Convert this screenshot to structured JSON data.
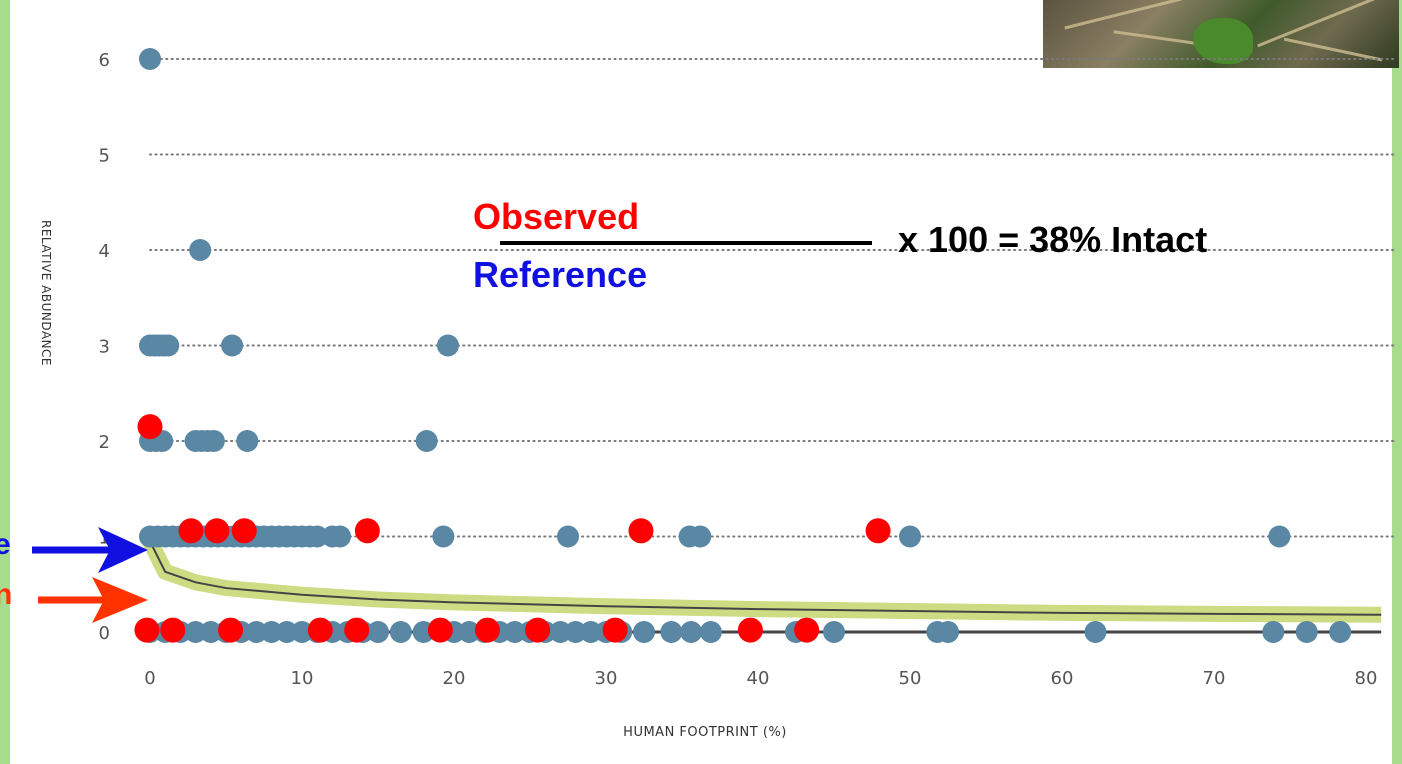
{
  "chart_data": {
    "type": "scatter",
    "xlabel": "HUMAN FOOTPRINT (%)",
    "ylabel": "RELATIVE ABUNDANCE",
    "xlim": [
      -1,
      82
    ],
    "ylim": [
      0,
      6
    ],
    "x_ticks": [
      "0",
      "10",
      "20",
      "30",
      "40",
      "50",
      "60",
      "70",
      "80"
    ],
    "y_ticks": [
      "0",
      "1",
      "2",
      "3",
      "4",
      "5",
      "6"
    ],
    "grid": "dotted horizontal",
    "series": [
      {
        "color": "#5a87a4",
        "points": [
          [
            0,
            6
          ],
          [
            3.3,
            4
          ],
          [
            0,
            3
          ],
          [
            0.3,
            3
          ],
          [
            0.6,
            3
          ],
          [
            0.9,
            3
          ],
          [
            1.2,
            3
          ],
          [
            5.4,
            3
          ],
          [
            19.6,
            3
          ],
          [
            0,
            2
          ],
          [
            0.4,
            2
          ],
          [
            0.8,
            2
          ],
          [
            3,
            2
          ],
          [
            3.4,
            2
          ],
          [
            3.8,
            2
          ],
          [
            4.2,
            2
          ],
          [
            6.4,
            2
          ],
          [
            18.2,
            2
          ],
          [
            0,
            1
          ],
          [
            0.5,
            1
          ],
          [
            1,
            1
          ],
          [
            1.5,
            1
          ],
          [
            2,
            1
          ],
          [
            2.5,
            1
          ],
          [
            3,
            1
          ],
          [
            3.5,
            1
          ],
          [
            4,
            1
          ],
          [
            4.5,
            1
          ],
          [
            5,
            1
          ],
          [
            5.5,
            1
          ],
          [
            6,
            1
          ],
          [
            6.5,
            1
          ],
          [
            7,
            1
          ],
          [
            7.5,
            1
          ],
          [
            8,
            1
          ],
          [
            8.5,
            1
          ],
          [
            9,
            1
          ],
          [
            9.5,
            1
          ],
          [
            10,
            1
          ],
          [
            10.5,
            1
          ],
          [
            11,
            1
          ],
          [
            12,
            1
          ],
          [
            12.5,
            1
          ],
          [
            19.3,
            1
          ],
          [
            27.5,
            1
          ],
          [
            35.5,
            1
          ],
          [
            36.2,
            1
          ],
          [
            50,
            1
          ],
          [
            74.3,
            1
          ],
          [
            0,
            0
          ],
          [
            1,
            0
          ],
          [
            2,
            0
          ],
          [
            3,
            0
          ],
          [
            4,
            0
          ],
          [
            5,
            0
          ],
          [
            6,
            0
          ],
          [
            7,
            0
          ],
          [
            8,
            0
          ],
          [
            9,
            0
          ],
          [
            10,
            0
          ],
          [
            11,
            0
          ],
          [
            12,
            0
          ],
          [
            13,
            0
          ],
          [
            14,
            0
          ],
          [
            15,
            0
          ],
          [
            16.5,
            0
          ],
          [
            18,
            0
          ],
          [
            20,
            0
          ],
          [
            21,
            0
          ],
          [
            22,
            0
          ],
          [
            23,
            0
          ],
          [
            24,
            0
          ],
          [
            25,
            0
          ],
          [
            26,
            0
          ],
          [
            27,
            0
          ],
          [
            28,
            0
          ],
          [
            29,
            0
          ],
          [
            30,
            0
          ],
          [
            31,
            0
          ],
          [
            32.5,
            0
          ],
          [
            34.3,
            0
          ],
          [
            35.6,
            0
          ],
          [
            36.9,
            0
          ],
          [
            42.5,
            0
          ],
          [
            45,
            0
          ],
          [
            51.8,
            0
          ],
          [
            52.5,
            0
          ],
          [
            62.2,
            0
          ],
          [
            73.9,
            0
          ],
          [
            76.1,
            0
          ],
          [
            78.3,
            0
          ]
        ]
      },
      {
        "color": "#ff0000",
        "points": [
          [
            0,
            2.15
          ],
          [
            2.7,
            1.06
          ],
          [
            4.4,
            1.06
          ],
          [
            6.2,
            1.06
          ],
          [
            14.3,
            1.06
          ],
          [
            32.3,
            1.06
          ],
          [
            47.9,
            1.06
          ],
          [
            -0.2,
            0.02
          ],
          [
            1.5,
            0.02
          ],
          [
            5.3,
            0.02
          ],
          [
            11.2,
            0.02
          ],
          [
            13.6,
            0.02
          ],
          [
            19.1,
            0.02
          ],
          [
            22.2,
            0.02
          ],
          [
            25.5,
            0.02
          ],
          [
            30.6,
            0.02
          ],
          [
            39.5,
            0.02
          ],
          [
            43.2,
            0.02
          ]
        ]
      }
    ],
    "fit_line": {
      "color": "#444444",
      "band_color": "#cddc82",
      "points": [
        [
          0,
          0.95
        ],
        [
          1,
          0.63
        ],
        [
          3,
          0.52
        ],
        [
          5,
          0.46
        ],
        [
          10,
          0.39
        ],
        [
          15,
          0.34
        ],
        [
          20,
          0.31
        ],
        [
          30,
          0.27
        ],
        [
          40,
          0.24
        ],
        [
          50,
          0.22
        ],
        [
          60,
          0.2
        ],
        [
          70,
          0.19
        ],
        [
          81,
          0.18
        ]
      ]
    },
    "bottom_line": {
      "color": "#444444",
      "points": [
        [
          0,
          0
        ],
        [
          81,
          0
        ]
      ]
    }
  },
  "annotations": {
    "observed": "Observed",
    "reference": "Reference",
    "equation": "x 100 = 38% Intact",
    "left_edge_blue": "e",
    "left_edge_red": "n",
    "blue": "#1010e0",
    "red": "#ff3300"
  },
  "photo": {
    "icon": "forest-floor-photo"
  }
}
